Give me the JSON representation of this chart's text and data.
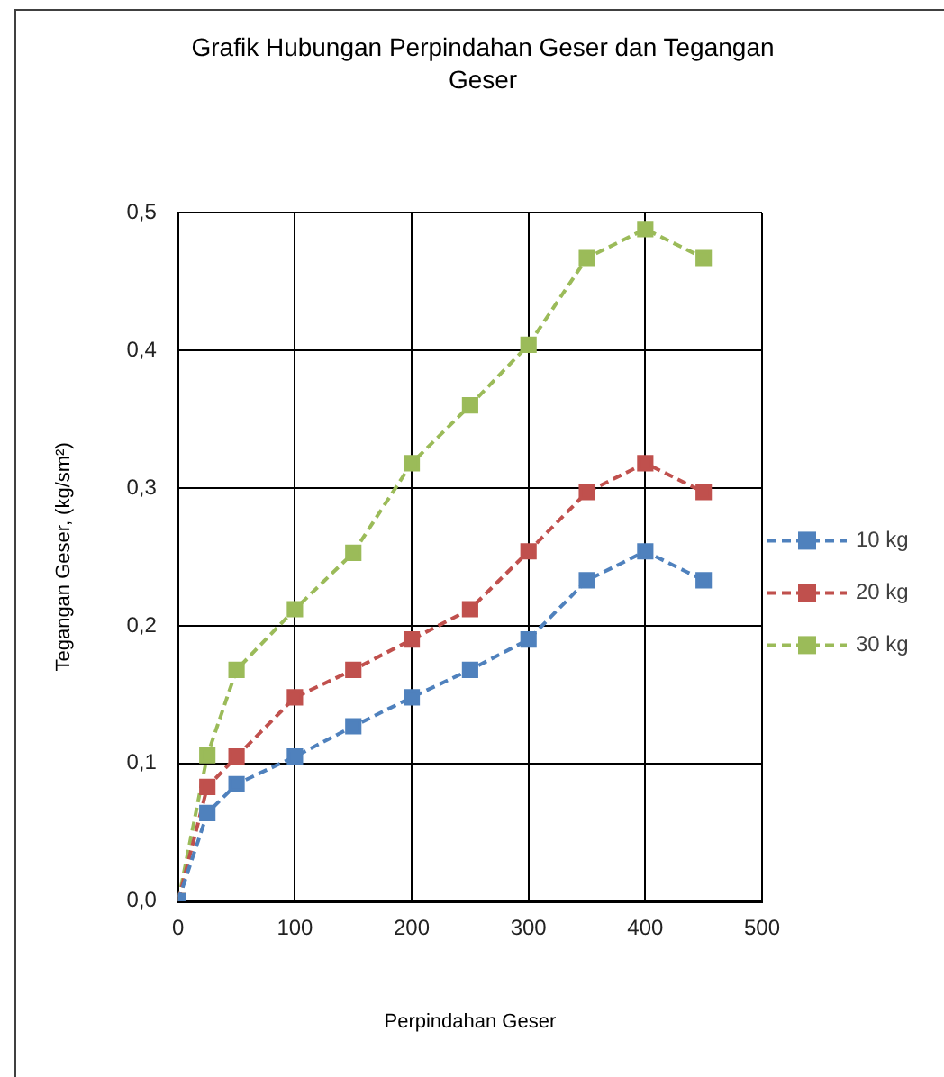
{
  "chart_data": {
    "type": "line",
    "title": "Grafik Hubungan Perpindahan Geser dan Tegangan Geser",
    "xlabel": "Perpindahan Geser",
    "ylabel": "Tegangan Geser, (kg/sm²)",
    "x": [
      0,
      25,
      50,
      100,
      150,
      200,
      250,
      300,
      350,
      400,
      450
    ],
    "series": [
      {
        "name": "10 kg",
        "color": "#4f81bd",
        "values": [
          0,
          0.064,
          0.085,
          0.105,
          0.127,
          0.148,
          0.168,
          0.19,
          0.233,
          0.254,
          0.233
        ]
      },
      {
        "name": "20 kg",
        "color": "#c0504d",
        "values": [
          0,
          0.083,
          0.105,
          0.148,
          0.168,
          0.19,
          0.212,
          0.254,
          0.297,
          0.318,
          0.297
        ]
      },
      {
        "name": "30 kg",
        "color": "#9bbb59",
        "values": [
          0,
          0.106,
          0.168,
          0.212,
          0.253,
          0.318,
          0.36,
          0.404,
          0.467,
          0.488,
          0.467
        ]
      }
    ],
    "xlim": [
      0,
      500
    ],
    "xticks": [
      0,
      100,
      200,
      300,
      400,
      500
    ],
    "ylim": [
      0,
      0.5
    ],
    "yticks": [
      {
        "value": 0,
        "label": "0,0"
      },
      {
        "value": 0.1,
        "label": "0,1"
      },
      {
        "value": 0.2,
        "label": "0,2"
      },
      {
        "value": 0.3,
        "label": "0,3"
      },
      {
        "value": 0.4,
        "label": "0,4"
      },
      {
        "value": 0.5,
        "label": "0,5"
      }
    ],
    "grid": true,
    "legend": "right",
    "marker": "square",
    "line_style": "dashed"
  }
}
